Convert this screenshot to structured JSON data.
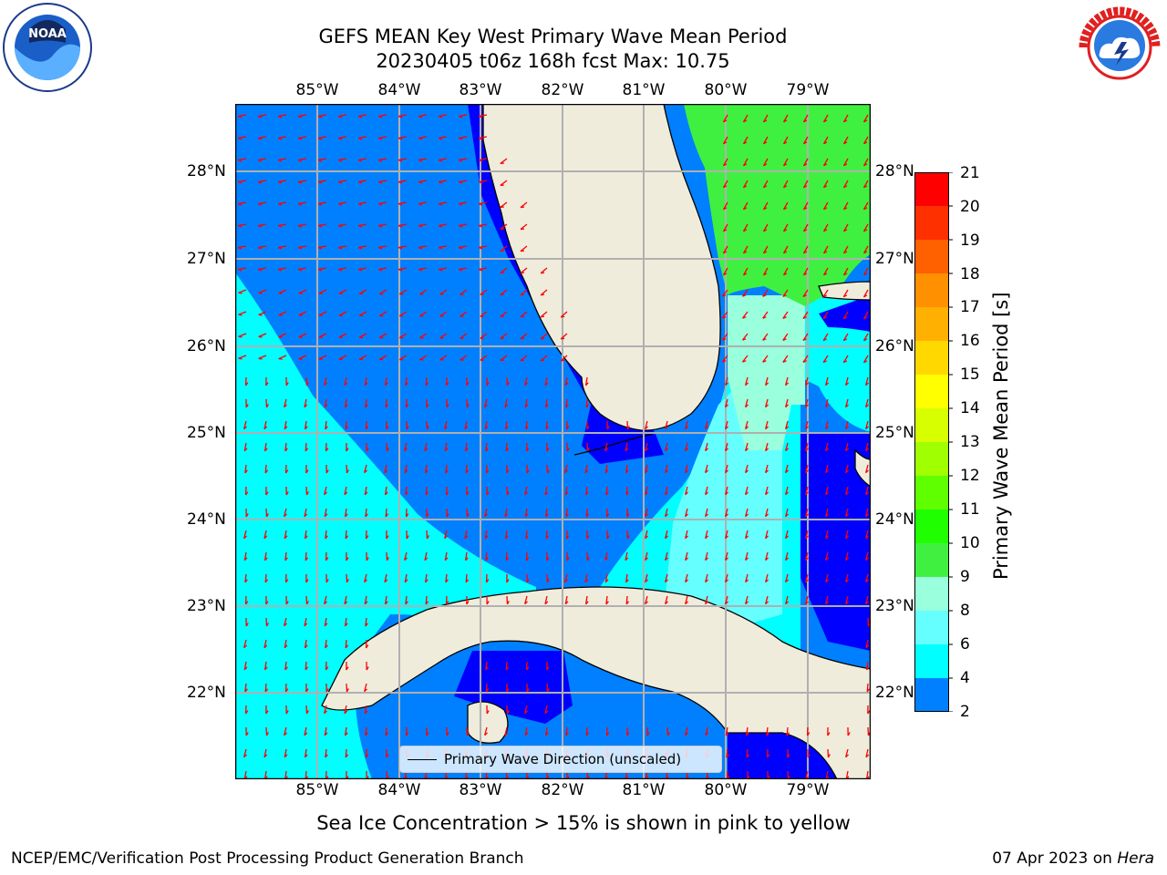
{
  "title": {
    "line1": "GEFS MEAN Key West Primary Wave Mean Period",
    "line2": "20230405 t06z 168h fcst   Max: 10.75"
  },
  "map": {
    "lon_labels": [
      "85°W",
      "84°W",
      "83°W",
      "82°W",
      "81°W",
      "80°W",
      "79°W"
    ],
    "lat_labels": [
      "28°N",
      "27°N",
      "26°N",
      "25°N",
      "24°N",
      "23°N",
      "22°N"
    ],
    "land_color": "#efecdc",
    "arrow_color": "#ff0000",
    "legend_text": "Primary Wave Direction (unscaled)"
  },
  "colorbar": {
    "title": "Primary Wave Mean Period [s]",
    "ticks": [
      "21",
      "20",
      "19",
      "18",
      "17",
      "16",
      "15",
      "14",
      "13",
      "12",
      "11",
      "10",
      "9",
      "8",
      "6",
      "4",
      "2"
    ],
    "colors": [
      "#ff0000",
      "#ff3000",
      "#ff6000",
      "#ff9000",
      "#ffb000",
      "#ffd800",
      "#ffff00",
      "#d8ff00",
      "#a0ff00",
      "#60ff00",
      "#20ff00",
      "#40f040",
      "#99ffdd",
      "#66ffff",
      "#00ffff",
      "#0080ff",
      "#0000ff"
    ]
  },
  "caption": "Sea Ice Concentration > 15% is shown in pink to yellow",
  "footer": {
    "left": "NCEP/EMC/Verification Post Processing Product Generation Branch",
    "right_date": "07 Apr 2023 on ",
    "right_machine": "Hera"
  },
  "logos": {
    "noaa": "NOAA",
    "nws": "NATIONAL WEATHER SERVICE"
  }
}
